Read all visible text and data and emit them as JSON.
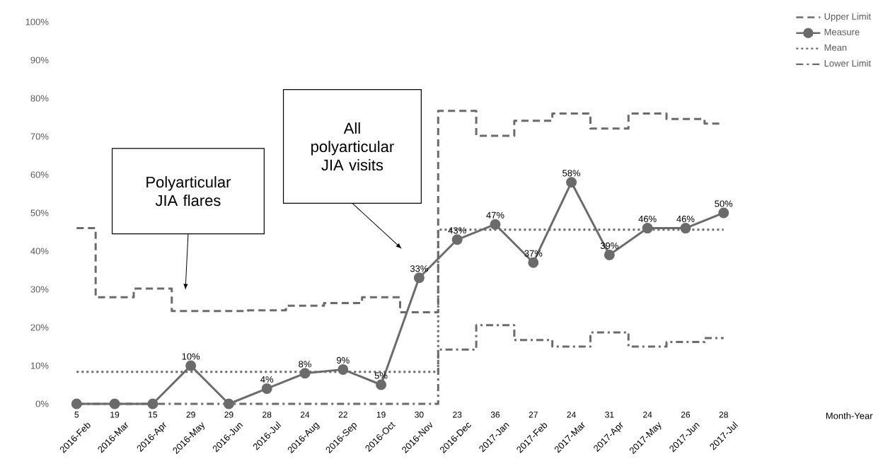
{
  "chart_data": {
    "type": "line",
    "categories": [
      "2016-Feb",
      "2016-Mar",
      "2016-Apr",
      "2016-May",
      "2016-Jun",
      "2016-Jul",
      "2016-Aug",
      "2016-Sep",
      "2016-Oct",
      "2016-Nov",
      "2016-Dec",
      "2017-Jan",
      "2017-Feb",
      "2017-Mar",
      "2017-Apr",
      "2017-May",
      "2017-Jun",
      "2017-Jul"
    ],
    "series": [
      {
        "name": "Upper Limit",
        "type": "step",
        "color": "#6b6b6b",
        "line_style": "dashed",
        "marker": "none",
        "values": [
          46,
          27.9,
          30.2,
          24.3,
          24.3,
          24.5,
          25.7,
          26.4,
          27.9,
          24,
          76.7,
          70.2,
          74.1,
          76,
          72.1,
          76,
          74.6,
          73.4
        ]
      },
      {
        "name": "Measure",
        "color": "#6b6b6b",
        "line_style": "solid",
        "marker": "circle",
        "values": [
          0,
          0,
          0,
          10,
          0,
          4,
          8,
          9,
          5,
          33,
          43,
          47,
          37,
          58,
          39,
          46,
          46,
          50
        ],
        "value_labels": [
          null,
          null,
          null,
          "10%",
          null,
          "4%",
          "8%",
          "9%",
          "5%",
          "33%",
          "43%",
          "47%",
          "37%",
          "58%",
          "39%",
          "46%",
          "46%",
          "50%"
        ]
      },
      {
        "name": "Mean",
        "type": "step",
        "color": "#6b6b6b",
        "line_style": "dotted",
        "marker": "none",
        "values": [
          8.4,
          8.4,
          8.4,
          8.4,
          8.4,
          8.4,
          8.4,
          8.4,
          8.4,
          8.4,
          45.6,
          45.6,
          45.6,
          45.6,
          45.6,
          45.6,
          45.6,
          45.6
        ]
      },
      {
        "name": "Lower Limit",
        "type": "step",
        "color": "#6b6b6b",
        "line_style": "dashdot",
        "marker": "none",
        "values": [
          0,
          0,
          0,
          0,
          0,
          0,
          0,
          0,
          0,
          0,
          14.2,
          20.6,
          16.7,
          15,
          18.7,
          15,
          16.2,
          17.2
        ]
      }
    ],
    "ylim": [
      0,
      100
    ],
    "yticks": [
      {
        "value": 0,
        "label": "0%"
      },
      {
        "value": 10,
        "label": "10%"
      },
      {
        "value": 20,
        "label": "20%"
      },
      {
        "value": 30,
        "label": "30%"
      },
      {
        "value": 40,
        "label": "40%"
      },
      {
        "value": 50,
        "label": "50%"
      },
      {
        "value": 60,
        "label": "60%"
      },
      {
        "value": 70,
        "label": "70%"
      },
      {
        "value": 80,
        "label": "80%"
      },
      {
        "value": 90,
        "label": "90%"
      },
      {
        "value": 100,
        "label": "100%"
      }
    ],
    "legend": "top right",
    "annotations": [
      "Polyarticular JIA flares",
      "All polyarticular JIA visits",
      "Month-Year",
      "5",
      "19",
      "15",
      "29",
      "29",
      "28",
      "24",
      "22",
      "19",
      "30",
      "23",
      "36",
      "27",
      "24",
      "31",
      "24",
      "26",
      "28"
    ]
  }
}
